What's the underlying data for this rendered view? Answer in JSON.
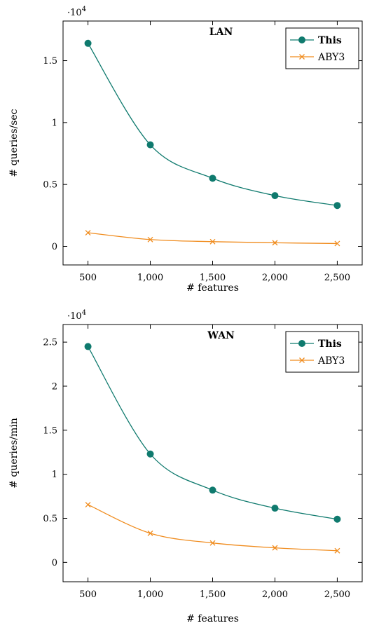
{
  "chart_data": [
    {
      "type": "line",
      "title": "LAN",
      "xlabel": "# features",
      "ylabel": "# queries/sec",
      "y_multiplier_label": "·10",
      "y_multiplier_exp": "4",
      "x": [
        500,
        1000,
        1500,
        2000,
        2500
      ],
      "x_tick_labels": [
        "500",
        "1,000",
        "1,500",
        "2,000",
        "2,500"
      ],
      "y_ticks": [
        0,
        0.5,
        1,
        1.5
      ],
      "y_tick_labels": [
        "0",
        "0.5",
        "1",
        "1.5"
      ],
      "xlim": [
        300,
        2700
      ],
      "ylim": [
        -0.15,
        1.82
      ],
      "legend_position": "top-right",
      "series": [
        {
          "name": "This",
          "values": [
            1.64,
            0.82,
            0.55,
            0.41,
            0.33
          ],
          "color": "#0f7a6e",
          "marker": "circle"
        },
        {
          "name": "ABY3",
          "values": [
            0.11,
            0.055,
            0.038,
            0.029,
            0.023
          ],
          "color": "#f08c1e",
          "marker": "x"
        }
      ]
    },
    {
      "type": "line",
      "title": "WAN",
      "xlabel": "# features",
      "ylabel": "# queries/min",
      "y_multiplier_label": "·10",
      "y_multiplier_exp": "4",
      "x": [
        500,
        1000,
        1500,
        2000,
        2500
      ],
      "x_tick_labels": [
        "500",
        "1,000",
        "1,500",
        "2,000",
        "2,500"
      ],
      "y_ticks": [
        0,
        0.5,
        1,
        1.5,
        2,
        2.5
      ],
      "y_tick_labels": [
        "0",
        "0.5",
        "1",
        "1.5",
        "2",
        "2.5"
      ],
      "xlim": [
        300,
        2700
      ],
      "ylim": [
        -0.22,
        2.7
      ],
      "legend_position": "top-right",
      "series": [
        {
          "name": "This",
          "values": [
            2.45,
            1.23,
            0.82,
            0.615,
            0.49
          ],
          "color": "#0f7a6e",
          "marker": "circle"
        },
        {
          "name": "ABY3",
          "values": [
            0.655,
            0.33,
            0.22,
            0.165,
            0.132
          ],
          "color": "#f08c1e",
          "marker": "x"
        }
      ]
    }
  ]
}
